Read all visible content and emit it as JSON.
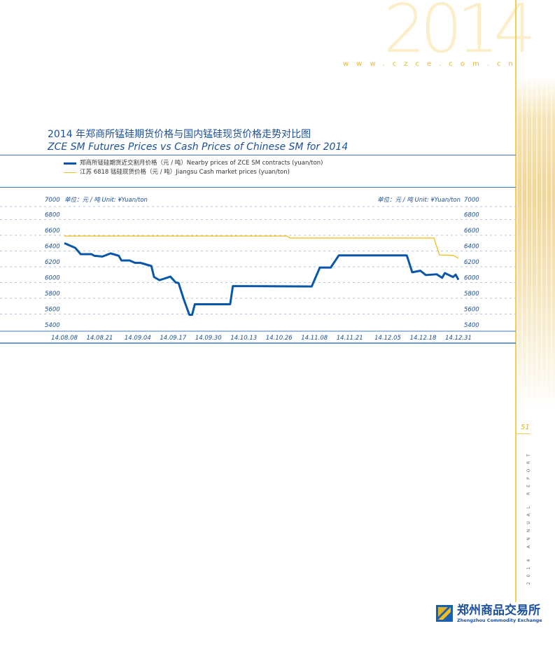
{
  "header": {
    "year_watermark": "2014",
    "website": "www.czce.com.cn"
  },
  "title": {
    "cn": "2014 年郑商所锰硅期货价格与国内锰硅现货价格走势对比图",
    "en": "ZCE SM Futures Prices vs Cash Prices of Chinese SM for 2014"
  },
  "sidebar": {
    "page_number": "51",
    "annual_report": "2014 ANNUAL REPORT"
  },
  "logo": {
    "cn": "郑州商品交易所",
    "en": "Zhengzhou Commodity Exchange"
  },
  "chart_data": {
    "type": "line",
    "title": "ZCE SM Futures Prices vs Cash Prices of Chinese SM for 2014",
    "unit_left": "单位：元 / 吨  Unit: ¥Yuan/ton",
    "unit_right": "单位：元 / 吨  Unit: ¥Yuan/ton",
    "ylim": [
      5400,
      7000
    ],
    "yticks": [
      "7000",
      "6800",
      "6600",
      "6400",
      "6200",
      "6000",
      "5800",
      "5600",
      "5400"
    ],
    "ytick_values": [
      7000,
      6800,
      6600,
      6400,
      6200,
      6000,
      5800,
      5600,
      5400
    ],
    "xlim_days": [
      0,
      145
    ],
    "xticks": [
      "14.08.08",
      "14.08.21",
      "14.09.04",
      "14.09.17",
      "14.09.30",
      "14.10.13",
      "14.10.26",
      "14.11.08",
      "14.11.21",
      "14.12.05",
      "14.12.18",
      "14.12.31"
    ],
    "xtick_days": [
      0,
      13,
      27,
      40,
      53,
      66,
      79,
      92,
      105,
      119,
      132,
      145
    ],
    "grid": true,
    "legend_placement": "top",
    "series": [
      {
        "name": "郑商所锰硅期货近交割月价格（元 / 吨）Nearby prices of ZCE SM contracts (yuan/ton)",
        "color": "#0a56a8",
        "days": [
          0,
          4,
          6,
          10,
          11,
          14,
          17,
          20,
          21,
          24,
          26,
          28,
          32,
          33,
          35,
          39,
          41,
          42,
          44,
          46,
          47,
          48,
          61,
          62,
          91,
          94,
          98,
          101,
          126,
          128,
          131,
          133,
          137,
          139,
          140,
          143,
          144,
          145
        ],
        "values": [
          6500,
          6440,
          6360,
          6360,
          6340,
          6330,
          6370,
          6340,
          6280,
          6280,
          6250,
          6250,
          6210,
          6070,
          6030,
          6075,
          6000,
          5995,
          5780,
          5590,
          5590,
          5725,
          5725,
          5955,
          5950,
          6190,
          6190,
          6345,
          6345,
          6130,
          6150,
          6095,
          6105,
          6060,
          6120,
          6070,
          6100,
          6035
        ]
      },
      {
        "name": "江苏 6818 锰硅现货价格（元 / 吨）Jiangsu Cash market prices (yuan/ton)",
        "color": "#f2be1e",
        "days": [
          0,
          82,
          83,
          136,
          138,
          143,
          145
        ],
        "values": [
          6590,
          6590,
          6565,
          6565,
          6350,
          6345,
          6310
        ]
      }
    ]
  }
}
